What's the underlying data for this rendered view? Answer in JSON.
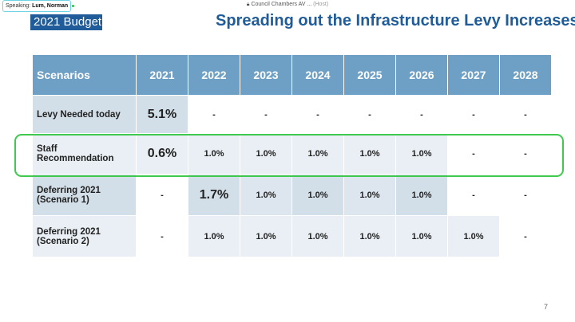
{
  "meeting": {
    "lock_icon": "lock-icon",
    "room": "Council Chambers AV ...",
    "host": "(Host)"
  },
  "speaking": {
    "label": "Speaking:",
    "name": "Lum, Norman"
  },
  "slide": {
    "tag": "2021 Budget",
    "title": "Spreading out the Infrastructure Levy Increases",
    "page": "7",
    "headers": [
      "Scenarios",
      "2021",
      "2022",
      "2023",
      "2024",
      "2025",
      "2026",
      "2027",
      "2028"
    ],
    "rows": [
      {
        "name": "Levy Needed today",
        "cells": [
          "5.1%",
          "-",
          "-",
          "-",
          "-",
          "-",
          "-",
          "-"
        ]
      },
      {
        "name": "Staff Recommendation",
        "cells": [
          "0.6%",
          "1.0%",
          "1.0%",
          "1.0%",
          "1.0%",
          "1.0%",
          "-",
          "-"
        ]
      },
      {
        "name": "Deferring 2021 (Scenario 1)",
        "cells": [
          "-",
          "1.7%",
          "1.0%",
          "1.0%",
          "1.0%",
          "1.0%",
          "-",
          "-"
        ]
      },
      {
        "name": "Deferring 2021 (Scenario 2)",
        "cells": [
          "-",
          "1.0%",
          "1.0%",
          "1.0%",
          "1.0%",
          "1.0%",
          "1.0%",
          "-"
        ]
      }
    ],
    "highlight_color": "#3fc94f",
    "header_color": "#6e9fc5",
    "title_color": "#1f5c99"
  }
}
